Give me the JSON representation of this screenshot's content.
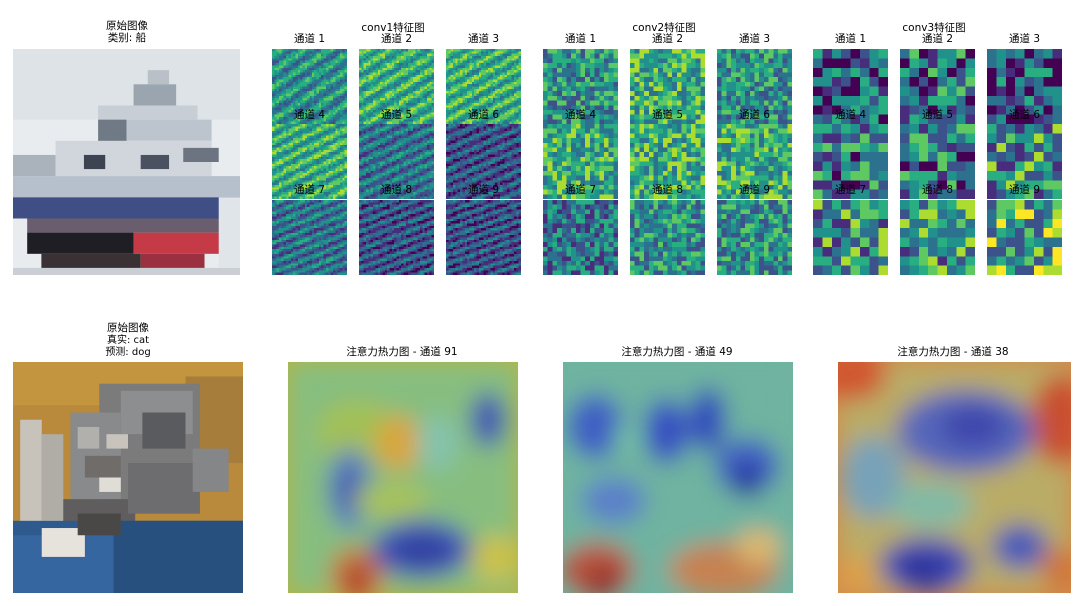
{
  "row1": {
    "original": {
      "title": "原始图像",
      "label": "类别: 船"
    },
    "groups": [
      {
        "title": "conv1特征图",
        "channels": [
          "通道 1",
          "通道 2",
          "通道 3",
          "通道 4",
          "通道 5",
          "通道 6",
          "通道 7",
          "通道 8",
          "通道 9"
        ]
      },
      {
        "title": "conv2特征图",
        "channels": [
          "通道 1",
          "通道 2",
          "通道 3",
          "通道 4",
          "通道 5",
          "通道 6",
          "通道 7",
          "通道 8",
          "通道 9"
        ]
      },
      {
        "title": "conv3特征图",
        "channels": [
          "通道 1",
          "通道 2",
          "通道 3",
          "通道 4",
          "通道 5",
          "通道 6",
          "通道 7",
          "通道 8",
          "通道 9"
        ]
      }
    ]
  },
  "row2": {
    "original": {
      "title": "原始图像",
      "true_label": "真实: cat",
      "pred_label": "预测: dog"
    },
    "heatmaps": [
      {
        "title": "注意力热力图 - 通道 91"
      },
      {
        "title": "注意力热力图 - 通道 49"
      },
      {
        "title": "注意力热力图 - 通道 38"
      }
    ]
  },
  "colormap": "viridis",
  "heatmap_colormap": "jet"
}
